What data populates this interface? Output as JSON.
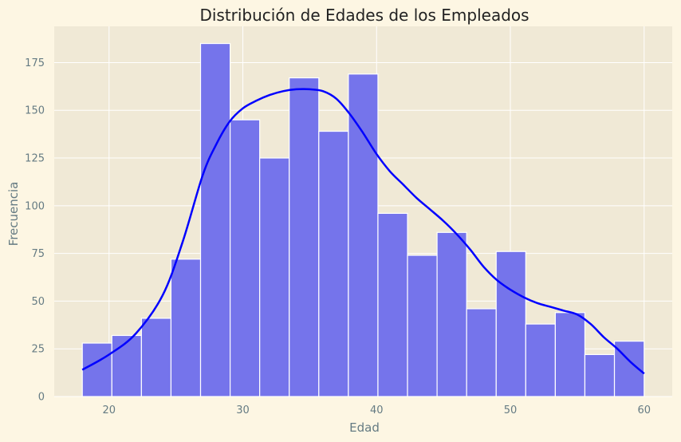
{
  "chart_data": {
    "type": "bar",
    "subtype": "histogram-with-kde",
    "title": "Distribución de Edades de los Empleados",
    "xlabel": "Edad",
    "ylabel": "Frecuencia",
    "xlim": [
      15.9,
      62.1
    ],
    "ylim": [
      0,
      194
    ],
    "xticks": [
      20,
      30,
      40,
      50,
      60
    ],
    "yticks": [
      0,
      25,
      50,
      75,
      100,
      125,
      150,
      175
    ],
    "grid": true,
    "bin_edges": [
      18,
      20.21,
      22.42,
      24.63,
      26.84,
      29.05,
      31.26,
      33.47,
      35.68,
      37.89,
      40.1,
      42.31,
      44.52,
      46.73,
      48.94,
      51.15,
      53.36,
      55.57,
      57.78,
      60
    ],
    "values": [
      28,
      32,
      41,
      72,
      185,
      145,
      125,
      167,
      139,
      169,
      96,
      74,
      86,
      46,
      76,
      38,
      44,
      22,
      29
    ],
    "kde": {
      "x": [
        18,
        20,
        22,
        24,
        25.5,
        27,
        28,
        29,
        30,
        31,
        32,
        33,
        34,
        35,
        36,
        37,
        38,
        39,
        40,
        41,
        42,
        43,
        44,
        45,
        46,
        47,
        48,
        49,
        50,
        51,
        52,
        53,
        54,
        55,
        56,
        57,
        58,
        59,
        60
      ],
      "y": [
        14,
        22,
        33,
        53,
        81,
        116,
        132,
        144,
        151,
        155,
        158,
        160,
        161,
        161,
        160,
        156,
        148,
        138,
        127,
        118,
        111,
        104,
        98,
        92,
        85,
        77,
        68,
        61,
        56,
        52,
        49,
        47,
        45,
        43,
        38,
        31,
        25,
        18,
        12
      ]
    },
    "colors": {
      "bars": "#7574eb",
      "bar_edge": "#ffffff",
      "kde_line": "#0000ff",
      "plot_bg": "#f0e9d6",
      "page_bg": "#fdf6e3",
      "grid": "#ffffff"
    }
  }
}
